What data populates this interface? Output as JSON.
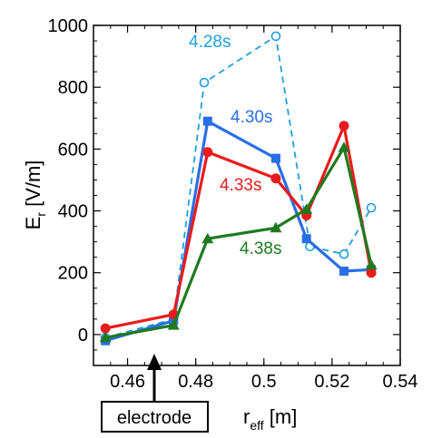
{
  "chart_data": {
    "type": "line",
    "title": "",
    "xlabel": {
      "main": "r",
      "sub": "eff",
      "unit": " [m]"
    },
    "ylabel": {
      "main": "E",
      "sub": "r",
      "unit": " [V/m]"
    },
    "xlim": [
      0.45,
      0.54
    ],
    "ylim": [
      -100,
      1000
    ],
    "xticks": [
      0.46,
      0.48,
      0.5,
      0.52,
      0.54
    ],
    "xtick_labels": [
      "0.46",
      "0.48",
      "0.5",
      "0.52",
      "0.54"
    ],
    "yticks": [
      0,
      200,
      400,
      600,
      800,
      1000
    ],
    "ytick_labels": [
      "0",
      "200",
      "400",
      "600",
      "800",
      "1000"
    ],
    "grid": false,
    "series": [
      {
        "name": "4.28s",
        "color": "#1e9fe0",
        "style": "dashed",
        "marker": "open-circle",
        "x": [
          0.4535,
          0.4735,
          0.4825,
          0.5035,
          0.5135,
          0.5235,
          0.5315
        ],
        "y": [
          -10,
          50,
          815,
          965,
          285,
          260,
          410
        ]
      },
      {
        "name": "4.30s",
        "color": "#2a6ee6",
        "style": "solid",
        "marker": "square",
        "x": [
          0.4535,
          0.4735,
          0.4835,
          0.5035,
          0.5125,
          0.5235,
          0.5315
        ],
        "y": [
          -20,
          45,
          690,
          570,
          310,
          205,
          210
        ]
      },
      {
        "name": "4.33s",
        "color": "#e81c1c",
        "style": "solid",
        "marker": "circle",
        "x": [
          0.4535,
          0.4735,
          0.4835,
          0.5035,
          0.5125,
          0.5235,
          0.5315
        ],
        "y": [
          20,
          65,
          590,
          505,
          385,
          675,
          200
        ]
      },
      {
        "name": "4.38s",
        "color": "#1f7a1f",
        "style": "solid",
        "marker": "triangle",
        "x": [
          0.4535,
          0.4735,
          0.4835,
          0.5035,
          0.5125,
          0.5235,
          0.5315
        ],
        "y": [
          -10,
          30,
          310,
          345,
          405,
          605,
          225
        ]
      }
    ],
    "annotation": {
      "text": "electrode",
      "x": 0.4685,
      "y": -100
    }
  }
}
